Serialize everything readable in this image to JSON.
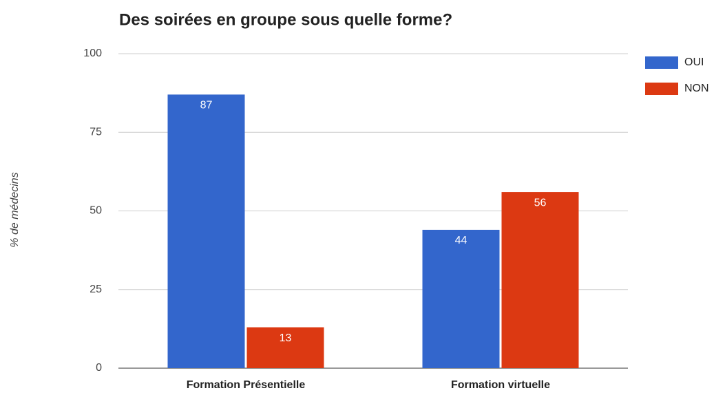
{
  "chart_data": {
    "type": "bar",
    "title": "Des soirées en groupe sous quelle forme?",
    "y_axis_label": "% de médecins",
    "categories": [
      "Formation Présentielle",
      "Formation virtuelle"
    ],
    "series": [
      {
        "name": "OUI",
        "color": "#3366cc",
        "values": [
          87,
          44
        ]
      },
      {
        "name": "NON",
        "color": "#dc3912",
        "values": [
          13,
          56
        ]
      }
    ],
    "ylim": [
      0,
      100
    ],
    "yticks": [
      0,
      25,
      50,
      75,
      100
    ],
    "grid": true,
    "legend": "right"
  }
}
